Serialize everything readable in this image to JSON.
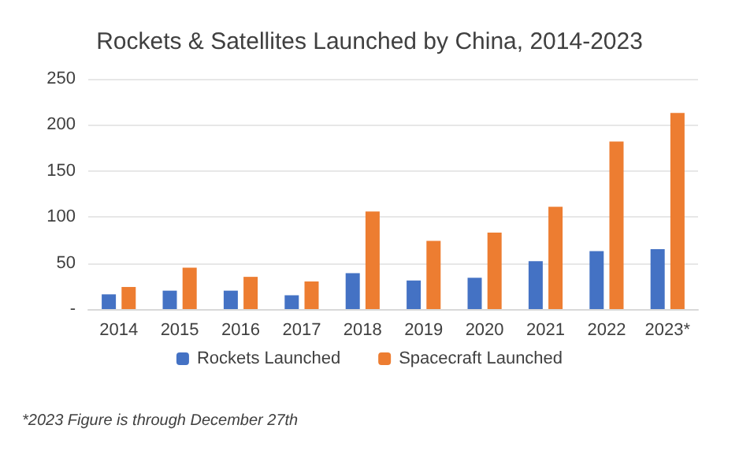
{
  "chart_data": {
    "type": "bar",
    "title": "Rockets & Satellites Launched by China, 2014-2023",
    "categories": [
      "2014",
      "2015",
      "2016",
      "2017",
      "2018",
      "2019",
      "2020",
      "2021",
      "2022",
      "2023*"
    ],
    "series": [
      {
        "name": "Rockets Launched",
        "color": "#4472c4",
        "values": [
          16,
          20,
          20,
          15,
          39,
          31,
          34,
          52,
          63,
          65
        ]
      },
      {
        "name": "Spacecraft Launched",
        "color": "#ed7d31",
        "values": [
          24,
          45,
          35,
          30,
          106,
          74,
          83,
          111,
          182,
          213
        ]
      }
    ],
    "ylim": [
      0,
      250
    ],
    "yticks": [
      {
        "value": 0,
        "label": "-"
      },
      50,
      100,
      150,
      200,
      250
    ],
    "grid": "y",
    "legend": "bottom",
    "annotations": [
      "*2023 Figure is through December 27th"
    ]
  }
}
